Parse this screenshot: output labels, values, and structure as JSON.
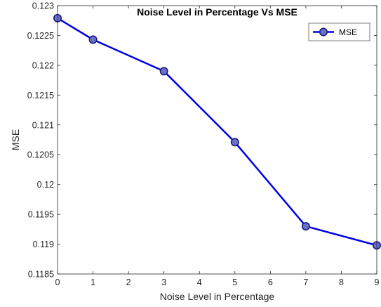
{
  "chart_data": {
    "type": "line",
    "title": "Noise Level in Percentage Vs MSE",
    "xlabel": "Noise Level in Percentage",
    "ylabel": "MSE",
    "xlim": [
      0,
      9
    ],
    "ylim": [
      0.1185,
      0.123
    ],
    "xticks": [
      0,
      1,
      2,
      3,
      4,
      5,
      6,
      7,
      8,
      9
    ],
    "xtick_labels": [
      "0",
      "1",
      "2",
      "3",
      "4",
      "5",
      "6",
      "7",
      "8",
      "9"
    ],
    "yticks": [
      0.1185,
      0.119,
      0.1195,
      0.12,
      0.1205,
      0.121,
      0.1215,
      0.122,
      0.1225,
      0.123
    ],
    "ytick_labels": [
      "0.1185",
      "0.119",
      "0.1195",
      "0.12",
      "0.1205",
      "0.121",
      "0.1215",
      "0.122",
      "0.1225",
      "0.123"
    ],
    "grid": false,
    "legend_position": "top-right",
    "series": [
      {
        "name": "MSE",
        "x": [
          0,
          1,
          3,
          5,
          7,
          9
        ],
        "values": [
          0.12279,
          0.12243,
          0.1219,
          0.12071,
          0.1193,
          0.11898
        ],
        "line_color": "#0000E6",
        "marker_face": "#6A72C8",
        "marker_edge": "#1A1A7A"
      }
    ]
  }
}
